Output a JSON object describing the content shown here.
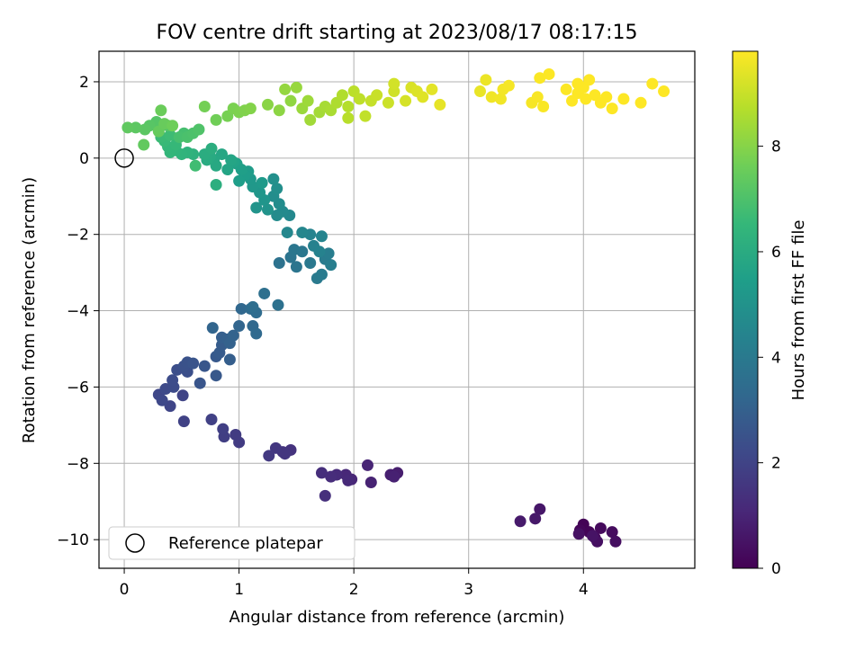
{
  "chart_data": {
    "type": "scatter",
    "title": "FOV centre drift starting at 2023/08/17 08:17:15",
    "xlabel": "Angular distance from reference (arcmin)",
    "ylabel": "Rotation from reference (arcmin)",
    "xlim": [
      -0.22,
      4.97
    ],
    "ylim": [
      -10.75,
      2.8
    ],
    "xticks": [
      0,
      1,
      2,
      3,
      4
    ],
    "yticks": [
      2,
      0,
      -2,
      -4,
      -6,
      -8,
      -10
    ],
    "xtick_labels": [
      "0",
      "1",
      "2",
      "3",
      "4"
    ],
    "ytick_labels": [
      "2",
      "0",
      "−2",
      "−4",
      "−6",
      "−8",
      "−10"
    ],
    "grid": true,
    "legend": {
      "placement": "lower-left",
      "entries": [
        "Reference platepar"
      ]
    },
    "reference_point": {
      "x": 0,
      "y": 0
    },
    "colorbar": {
      "label": "Hours from first FF file",
      "colormap": "viridis",
      "range": [
        0,
        9.8
      ],
      "ticks": [
        0,
        2,
        4,
        6,
        8
      ],
      "tick_labels": [
        "0",
        "2",
        "4",
        "6",
        "8"
      ]
    },
    "series": [
      {
        "color_by": "hours",
        "points": [
          [
            4.0,
            -9.6,
            0.05
          ],
          [
            4.05,
            -9.8,
            0.1
          ],
          [
            3.97,
            -9.75,
            0.15
          ],
          [
            4.1,
            -9.95,
            0.2
          ],
          [
            4.15,
            -9.7,
            0.25
          ],
          [
            4.25,
            -9.8,
            0.3
          ],
          [
            4.28,
            -10.05,
            0.35
          ],
          [
            4.12,
            -10.05,
            0.4
          ],
          [
            3.96,
            -9.85,
            0.45
          ],
          [
            4.08,
            -9.9,
            0.5
          ],
          [
            3.62,
            -9.2,
            0.6
          ],
          [
            3.58,
            -9.45,
            0.65
          ],
          [
            3.45,
            -9.52,
            0.7
          ],
          [
            2.38,
            -8.25,
            0.8
          ],
          [
            2.32,
            -8.3,
            0.85
          ],
          [
            2.35,
            -8.35,
            0.9
          ],
          [
            2.15,
            -8.5,
            0.95
          ],
          [
            2.12,
            -8.05,
            1.0
          ],
          [
            1.98,
            -8.42,
            1.05
          ],
          [
            1.93,
            -8.3,
            1.1
          ],
          [
            1.95,
            -8.45,
            1.15
          ],
          [
            1.85,
            -8.3,
            1.2
          ],
          [
            1.8,
            -8.35,
            1.25
          ],
          [
            1.72,
            -8.25,
            1.3
          ],
          [
            1.75,
            -8.85,
            1.35
          ],
          [
            1.45,
            -7.65,
            1.45
          ],
          [
            1.38,
            -7.7,
            1.5
          ],
          [
            1.4,
            -7.75,
            1.55
          ],
          [
            1.32,
            -7.6,
            1.6
          ],
          [
            1.26,
            -7.8,
            1.65
          ],
          [
            1.0,
            -7.45,
            1.7
          ],
          [
            0.97,
            -7.25,
            1.75
          ],
          [
            0.87,
            -7.3,
            1.8
          ],
          [
            0.86,
            -7.1,
            1.85
          ],
          [
            0.76,
            -6.85,
            1.9
          ],
          [
            0.52,
            -6.9,
            1.95
          ],
          [
            0.51,
            -6.22,
            2.0
          ],
          [
            0.4,
            -6.5,
            2.05
          ],
          [
            0.3,
            -6.2,
            2.1
          ],
          [
            0.33,
            -6.35,
            2.15
          ],
          [
            0.36,
            -6.05,
            2.2
          ],
          [
            0.43,
            -6.0,
            2.25
          ],
          [
            0.42,
            -5.82,
            2.3
          ],
          [
            0.46,
            -5.55,
            2.35
          ],
          [
            0.55,
            -5.6,
            2.4
          ],
          [
            0.52,
            -5.45,
            2.45
          ],
          [
            0.55,
            -5.35,
            2.5
          ],
          [
            0.6,
            -5.38,
            2.55
          ],
          [
            0.66,
            -5.9,
            2.6
          ],
          [
            0.7,
            -5.45,
            2.65
          ],
          [
            0.8,
            -5.7,
            2.7
          ],
          [
            0.8,
            -5.2,
            2.75
          ],
          [
            0.83,
            -5.1,
            2.8
          ],
          [
            0.85,
            -4.9,
            2.85
          ],
          [
            0.92,
            -5.28,
            2.9
          ],
          [
            0.85,
            -4.7,
            2.95
          ],
          [
            0.9,
            -4.75,
            3.0
          ],
          [
            0.92,
            -4.85,
            3.05
          ],
          [
            0.95,
            -4.65,
            3.1
          ],
          [
            0.77,
            -4.45,
            3.15
          ],
          [
            1.0,
            -4.4,
            3.2
          ],
          [
            1.02,
            -3.95,
            3.25
          ],
          [
            1.12,
            -4.4,
            3.3
          ],
          [
            1.15,
            -4.6,
            3.35
          ],
          [
            1.1,
            -3.95,
            3.4
          ],
          [
            1.15,
            -4.05,
            3.45
          ],
          [
            1.12,
            -3.9,
            3.5
          ],
          [
            1.22,
            -3.55,
            3.6
          ],
          [
            1.34,
            -3.85,
            3.65
          ],
          [
            1.35,
            -2.75,
            3.7
          ],
          [
            1.45,
            -2.6,
            3.75
          ],
          [
            1.5,
            -2.85,
            3.8
          ],
          [
            1.48,
            -2.4,
            3.85
          ],
          [
            1.55,
            -2.45,
            3.9
          ],
          [
            1.62,
            -2.75,
            3.95
          ],
          [
            1.68,
            -3.15,
            4.0
          ],
          [
            1.72,
            -3.05,
            4.05
          ],
          [
            1.75,
            -2.65,
            4.1
          ],
          [
            1.78,
            -2.5,
            4.15
          ],
          [
            1.8,
            -2.8,
            4.2
          ],
          [
            1.65,
            -2.3,
            4.3
          ],
          [
            1.7,
            -2.45,
            4.35
          ],
          [
            1.62,
            -2.0,
            4.4
          ],
          [
            1.72,
            -2.05,
            4.45
          ],
          [
            1.55,
            -1.95,
            4.5
          ],
          [
            1.42,
            -1.95,
            4.55
          ],
          [
            1.44,
            -1.5,
            4.6
          ],
          [
            1.38,
            -1.4,
            4.65
          ],
          [
            1.33,
            -1.5,
            4.7
          ],
          [
            1.35,
            -1.2,
            4.75
          ],
          [
            1.3,
            -1.0,
            4.8
          ],
          [
            1.33,
            -0.8,
            4.85
          ],
          [
            1.3,
            -0.55,
            4.9
          ],
          [
            1.25,
            -1.35,
            5.0
          ],
          [
            1.15,
            -1.3,
            5.05
          ],
          [
            1.22,
            -1.1,
            5.1
          ],
          [
            1.18,
            -0.9,
            5.15
          ],
          [
            1.12,
            -0.75,
            5.2
          ],
          [
            1.1,
            -0.55,
            5.25
          ],
          [
            1.2,
            -0.65,
            5.3
          ],
          [
            1.08,
            -0.35,
            5.35
          ],
          [
            1.05,
            -0.45,
            5.4
          ],
          [
            1.0,
            -0.6,
            5.45
          ],
          [
            1.02,
            -0.3,
            5.5
          ],
          [
            0.98,
            -0.15,
            5.55
          ],
          [
            0.95,
            -0.1,
            5.65
          ],
          [
            0.9,
            -0.3,
            5.7
          ],
          [
            0.93,
            -0.05,
            5.75
          ],
          [
            0.85,
            0.1,
            5.8
          ],
          [
            0.78,
            -0.05,
            5.85
          ],
          [
            0.8,
            -0.2,
            5.9
          ],
          [
            0.75,
            0.05,
            5.95
          ],
          [
            0.72,
            -0.05,
            6.0
          ],
          [
            0.7,
            0.1,
            6.05
          ],
          [
            0.76,
            0.25,
            6.1
          ],
          [
            0.8,
            -0.7,
            6.15
          ],
          [
            0.6,
            0.1,
            6.25
          ],
          [
            0.55,
            0.15,
            6.3
          ],
          [
            0.5,
            0.1,
            6.35
          ],
          [
            0.45,
            0.2,
            6.4
          ],
          [
            0.4,
            0.15,
            6.45
          ],
          [
            0.38,
            0.3,
            6.5
          ],
          [
            0.45,
            0.35,
            6.55
          ],
          [
            0.35,
            0.45,
            6.6
          ],
          [
            0.32,
            0.55,
            6.65
          ],
          [
            0.4,
            0.6,
            6.7
          ],
          [
            0.62,
            -0.2,
            6.75
          ],
          [
            0.52,
            0.65,
            6.85
          ],
          [
            0.48,
            0.55,
            6.9
          ],
          [
            0.55,
            0.55,
            6.95
          ],
          [
            0.6,
            0.65,
            7.0
          ],
          [
            0.65,
            0.75,
            7.05
          ],
          [
            0.38,
            0.85,
            7.1
          ],
          [
            0.28,
            0.95,
            7.15
          ],
          [
            0.22,
            0.85,
            7.2
          ],
          [
            0.18,
            0.75,
            7.25
          ],
          [
            0.1,
            0.8,
            7.3
          ],
          [
            0.03,
            0.8,
            7.35
          ],
          [
            0.17,
            0.35,
            7.4
          ],
          [
            0.3,
            0.7,
            7.45
          ],
          [
            0.35,
            0.9,
            7.5
          ],
          [
            0.32,
            1.25,
            7.55
          ],
          [
            0.42,
            0.85,
            7.6
          ],
          [
            0.8,
            1.0,
            7.65
          ],
          [
            0.7,
            1.35,
            7.7
          ],
          [
            0.9,
            1.1,
            7.75
          ],
          [
            0.95,
            1.3,
            7.8
          ],
          [
            1.0,
            1.2,
            7.85
          ],
          [
            1.05,
            1.25,
            7.9
          ],
          [
            1.1,
            1.3,
            7.95
          ],
          [
            1.25,
            1.4,
            8.05
          ],
          [
            1.35,
            1.25,
            8.1
          ],
          [
            1.45,
            1.5,
            8.15
          ],
          [
            1.4,
            1.8,
            8.2
          ],
          [
            1.5,
            1.85,
            8.25
          ],
          [
            1.55,
            1.3,
            8.3
          ],
          [
            1.6,
            1.5,
            8.35
          ],
          [
            1.62,
            1.0,
            8.4
          ],
          [
            1.7,
            1.2,
            8.45
          ],
          [
            1.75,
            1.35,
            8.5
          ],
          [
            1.8,
            1.25,
            8.55
          ],
          [
            1.85,
            1.45,
            8.6
          ],
          [
            1.9,
            1.65,
            8.65
          ],
          [
            1.95,
            1.35,
            8.7
          ],
          [
            1.95,
            1.05,
            8.75
          ],
          [
            2.0,
            1.75,
            8.8
          ],
          [
            2.05,
            1.55,
            8.85
          ],
          [
            2.1,
            1.1,
            8.9
          ],
          [
            2.15,
            1.5,
            8.95
          ],
          [
            2.2,
            1.65,
            9.0
          ],
          [
            2.3,
            1.45,
            9.05
          ],
          [
            2.35,
            1.75,
            9.1
          ],
          [
            2.35,
            1.95,
            9.15
          ],
          [
            2.45,
            1.5,
            9.2
          ],
          [
            2.5,
            1.85,
            9.25
          ],
          [
            2.55,
            1.75,
            9.3
          ],
          [
            2.6,
            1.6,
            9.35
          ],
          [
            2.68,
            1.8,
            9.4
          ],
          [
            2.75,
            1.4,
            9.45
          ],
          [
            3.1,
            1.75,
            9.5
          ],
          [
            3.15,
            2.05,
            9.55
          ],
          [
            3.2,
            1.6,
            9.6
          ],
          [
            3.28,
            1.55,
            9.62
          ],
          [
            3.3,
            1.8,
            9.65
          ],
          [
            3.35,
            1.9,
            9.68
          ],
          [
            3.55,
            1.45,
            9.7
          ],
          [
            3.6,
            1.6,
            9.72
          ],
          [
            3.65,
            1.35,
            9.74
          ],
          [
            3.62,
            2.1,
            9.76
          ],
          [
            3.7,
            2.2,
            9.78
          ],
          [
            3.85,
            1.8,
            9.79
          ],
          [
            3.9,
            1.5,
            9.8
          ],
          [
            3.95,
            1.7,
            9.8
          ],
          [
            4.0,
            1.85,
            9.8
          ],
          [
            4.05,
            2.05,
            9.8
          ],
          [
            4.1,
            1.65,
            9.8
          ],
          [
            4.15,
            1.45,
            9.8
          ],
          [
            4.2,
            1.6,
            9.8
          ],
          [
            4.25,
            1.3,
            9.8
          ],
          [
            4.35,
            1.55,
            9.8
          ],
          [
            4.5,
            1.45,
            9.8
          ],
          [
            4.6,
            1.95,
            9.8
          ],
          [
            4.7,
            1.75,
            9.8
          ],
          [
            3.95,
            1.95,
            9.8
          ],
          [
            4.02,
            1.55,
            9.8
          ]
        ]
      }
    ]
  },
  "colors": {
    "axis": "#000000",
    "grid": "#b0b0b0",
    "legend_border": "#cccccc",
    "viridis": [
      "#440154",
      "#482878",
      "#3e4989",
      "#31688e",
      "#26828e",
      "#1f9e89",
      "#35b779",
      "#6ece58",
      "#b5de2b",
      "#fde725"
    ]
  }
}
